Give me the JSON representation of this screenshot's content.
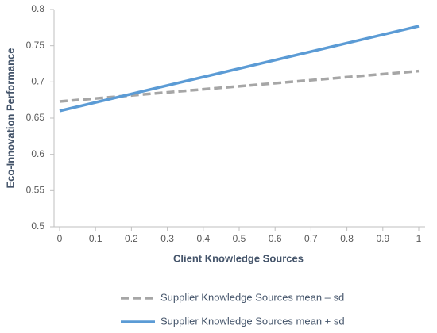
{
  "chart_data": {
    "type": "line",
    "x_label": "Client Knowledge Sources",
    "y_label": "Eco-Innovation Performance",
    "x": [
      0,
      1
    ],
    "series": [
      {
        "name": "Supplier Knowledge Sources mean – sd",
        "color": "#a6a6a6",
        "dashed": true,
        "values": [
          0.673,
          0.715
        ]
      },
      {
        "name": "Supplier Knowledge Sources mean + sd",
        "color": "#5b9bd5",
        "dashed": false,
        "values": [
          0.66,
          0.777
        ]
      }
    ],
    "xlim": [
      0,
      1
    ],
    "xticks": [
      0,
      0.1,
      0.2,
      0.3,
      0.4,
      0.5,
      0.6,
      0.7,
      0.8,
      0.9,
      1
    ],
    "ylim": [
      0.5,
      0.8
    ],
    "yticks": [
      0.5,
      0.55,
      0.6,
      0.65,
      0.7,
      0.75,
      0.8
    ],
    "grid": false
  }
}
